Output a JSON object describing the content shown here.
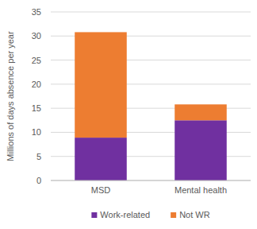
{
  "chart_data": {
    "type": "bar",
    "stacked": true,
    "categories": [
      "MSD",
      "Mental health"
    ],
    "series": [
      {
        "name": "Work-related",
        "color": "#7030a0",
        "values": [
          8.9,
          12.5
        ]
      },
      {
        "name": "Not WR",
        "color": "#ed7d31",
        "values": [
          21.9,
          3.3
        ]
      }
    ],
    "y_label": "Millions of days absence per year",
    "ylim": [
      0,
      35
    ],
    "yticks": [
      0,
      5,
      10,
      15,
      20,
      25,
      30,
      35
    ],
    "grid": true,
    "legend": "bottom"
  }
}
